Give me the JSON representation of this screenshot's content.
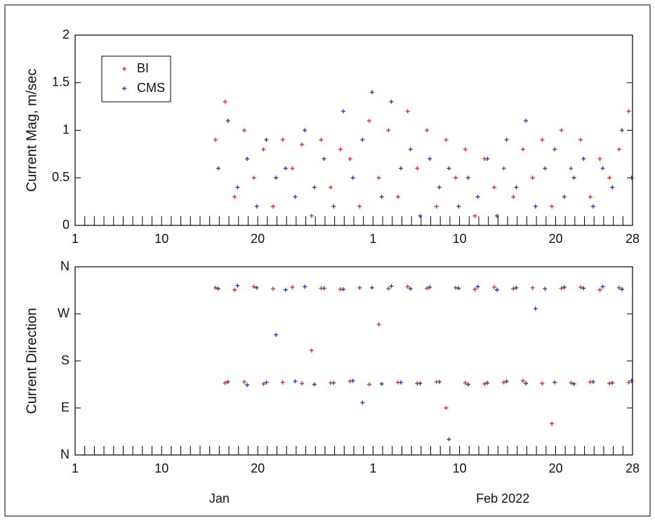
{
  "chart_data": [
    {
      "type": "scatter",
      "y_label": "Current Mag, m/sec",
      "xlim": [
        1,
        59
      ],
      "xticks": [
        1,
        10,
        20,
        {
          "value": 32,
          "label": "1"
        },
        {
          "value": 41,
          "label": "10"
        },
        {
          "value": 51,
          "label": "20"
        },
        {
          "value": 59,
          "label": "28"
        }
      ],
      "xminorticks": [
        1,
        2,
        3,
        4,
        5,
        6,
        7,
        8,
        9,
        10,
        11,
        12,
        13,
        14,
        15,
        16,
        17,
        18,
        19,
        20,
        21,
        22,
        23,
        24,
        25,
        26,
        27,
        28,
        29,
        30,
        31,
        32,
        33,
        34,
        35,
        36,
        37,
        38,
        39,
        40,
        41,
        42,
        43,
        44,
        45,
        46,
        47,
        48,
        49,
        50,
        51,
        52,
        53,
        54,
        55,
        56,
        57,
        58,
        59
      ],
      "ylim": [
        0,
        2
      ],
      "yticks": [
        0,
        0.5,
        1,
        1.5,
        2
      ],
      "legend": "upper-left",
      "series": [
        {
          "name": "BI",
          "color": "#e0312b",
          "x": [
            15.6,
            16.6,
            17.6,
            18.6,
            19.6,
            20.6,
            21.6,
            22.6,
            23.6,
            24.6,
            25.6,
            26.6,
            27.6,
            28.6,
            29.6,
            30.6,
            31.6,
            32.6,
            33.6,
            34.6,
            35.6,
            36.6,
            37.6,
            38.6,
            39.6,
            40.6,
            41.6,
            42.6,
            43.6,
            44.6,
            45.6,
            46.6,
            47.6,
            48.6,
            49.6,
            50.6,
            51.6,
            52.6,
            53.6,
            54.6,
            55.6,
            56.6,
            57.6,
            58.6
          ],
          "values": [
            0.9,
            1.3,
            0.3,
            1.0,
            0.5,
            0.8,
            0.2,
            0.9,
            0.6,
            0.85,
            0.1,
            0.9,
            0.4,
            0.8,
            0.7,
            0.2,
            1.1,
            0.5,
            1.0,
            0.3,
            1.2,
            0.6,
            1.0,
            0.2,
            0.9,
            0.5,
            0.8,
            0.1,
            0.7,
            0.4,
            0.6,
            0.3,
            0.8,
            0.5,
            0.9,
            0.2,
            1.0,
            0.6,
            0.9,
            0.3,
            0.7,
            0.5,
            0.8,
            1.2
          ]
        },
        {
          "name": "CMS",
          "color": "#3a35b3",
          "x": [
            15.9,
            16.9,
            17.9,
            18.9,
            19.9,
            20.9,
            21.9,
            22.9,
            23.9,
            24.9,
            25.9,
            26.9,
            27.9,
            28.9,
            29.9,
            30.9,
            31.9,
            32.9,
            33.9,
            34.9,
            35.9,
            36.9,
            37.9,
            38.9,
            39.9,
            40.9,
            41.9,
            42.9,
            43.9,
            44.9,
            45.9,
            46.9,
            47.9,
            48.9,
            49.9,
            50.9,
            51.9,
            52.9,
            53.9,
            54.9,
            55.9,
            56.9,
            57.9,
            58.9
          ],
          "values": [
            0.6,
            1.1,
            0.4,
            0.7,
            0.2,
            0.9,
            0.5,
            0.6,
            0.3,
            1.0,
            0.4,
            0.7,
            0.2,
            1.2,
            0.5,
            0.9,
            1.4,
            0.3,
            1.3,
            0.6,
            0.8,
            0.1,
            0.7,
            0.4,
            0.6,
            0.2,
            0.5,
            0.3,
            0.7,
            0.1,
            0.9,
            0.4,
            1.1,
            0.2,
            0.6,
            0.8,
            0.3,
            0.5,
            0.7,
            0.2,
            0.6,
            0.4,
            1.0,
            0.5
          ]
        }
      ]
    },
    {
      "type": "scatter",
      "y_label": "Current Direction",
      "xlim": [
        1,
        59
      ],
      "xticks": [
        1,
        10,
        20,
        {
          "value": 32,
          "label": "1"
        },
        {
          "value": 41,
          "label": "10"
        },
        {
          "value": 51,
          "label": "20"
        },
        {
          "value": 59,
          "label": "28"
        }
      ],
      "xminorticks": [
        1,
        2,
        3,
        4,
        5,
        6,
        7,
        8,
        9,
        10,
        11,
        12,
        13,
        14,
        15,
        16,
        17,
        18,
        19,
        20,
        21,
        22,
        23,
        24,
        25,
        26,
        27,
        28,
        29,
        30,
        31,
        32,
        33,
        34,
        35,
        36,
        37,
        38,
        39,
        40,
        41,
        42,
        43,
        44,
        45,
        46,
        47,
        48,
        49,
        50,
        51,
        52,
        53,
        54,
        55,
        56,
        57,
        58,
        59
      ],
      "month_labels": [
        {
          "value": 16,
          "label": "Jan"
        },
        {
          "value": 45.5,
          "label": "Feb 2022"
        }
      ],
      "ylim": [
        0,
        360
      ],
      "yticks": [
        {
          "value": 0,
          "label": "N"
        },
        {
          "value": 90,
          "label": "E"
        },
        {
          "value": 180,
          "label": "S"
        },
        {
          "value": 270,
          "label": "W"
        },
        {
          "value": 360,
          "label": "N"
        }
      ],
      "series": [
        {
          "name": "BI",
          "color": "#e0312b",
          "x": [
            15.6,
            16.6,
            17.6,
            18.6,
            19.6,
            20.6,
            21.6,
            22.6,
            23.6,
            24.6,
            25.6,
            26.6,
            27.6,
            28.6,
            29.6,
            30.6,
            31.6,
            32.6,
            33.6,
            34.6,
            35.6,
            36.6,
            37.6,
            38.6,
            39.6,
            40.6,
            41.6,
            42.6,
            43.6,
            44.6,
            45.6,
            46.6,
            47.6,
            48.6,
            49.6,
            50.6,
            51.6,
            52.6,
            53.6,
            54.6,
            55.6,
            56.6,
            57.6,
            58.6
          ],
          "values": [
            320,
            138,
            316,
            140,
            322,
            136,
            318,
            139,
            321,
            137,
            200,
            319,
            138,
            317,
            141,
            320,
            135,
            250,
            318,
            139,
            322,
            137,
            319,
            140,
            90,
            320,
            138,
            317,
            136,
            321,
            139,
            318,
            142,
            320,
            137,
            60,
            319,
            138,
            321,
            140,
            316,
            137,
            320,
            139
          ]
        },
        {
          "name": "CMS",
          "color": "#3a35b3",
          "x": [
            15.9,
            16.9,
            17.9,
            18.9,
            19.9,
            20.9,
            21.9,
            22.9,
            23.9,
            24.9,
            25.9,
            26.9,
            27.9,
            28.9,
            29.9,
            30.9,
            31.9,
            32.9,
            33.9,
            34.9,
            35.9,
            36.9,
            37.9,
            38.9,
            39.9,
            40.9,
            41.9,
            42.9,
            43.9,
            44.9,
            45.9,
            46.9,
            47.9,
            48.9,
            49.9,
            50.9,
            51.9,
            52.9,
            53.9,
            54.9,
            55.9,
            56.9,
            57.9,
            58.9
          ],
          "values": [
            318,
            140,
            324,
            134,
            320,
            139,
            230,
            316,
            141,
            322,
            135,
            319,
            138,
            317,
            142,
            100,
            320,
            136,
            323,
            139,
            318,
            137,
            321,
            140,
            30,
            319,
            135,
            322,
            138,
            316,
            141,
            320,
            137,
            280,
            318,
            139,
            321,
            136,
            319,
            140,
            322,
            138,
            317,
            142
          ]
        }
      ]
    }
  ]
}
